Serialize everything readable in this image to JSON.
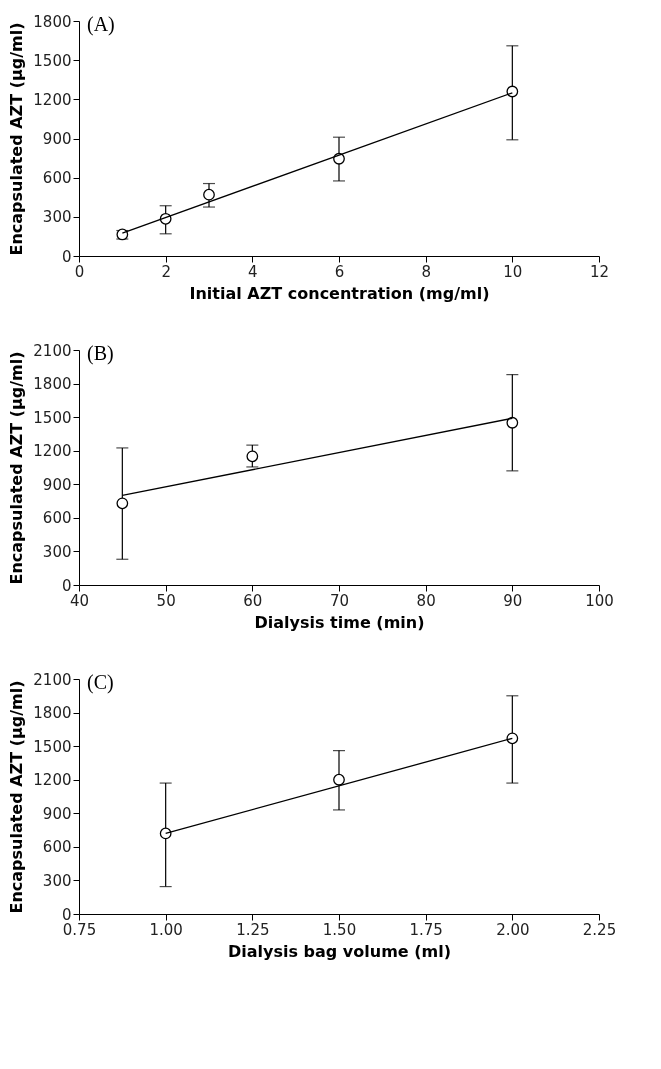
{
  "chart_data": [
    {
      "type": "scatter",
      "annotations": [
        "(A)"
      ],
      "xlabel": "Initial AZT concentration (mg/ml)",
      "ylabel": "Encapsulated AZT (µg/ml)",
      "xlim": [
        0,
        12
      ],
      "xticks": [
        0,
        2,
        4,
        6,
        8,
        10,
        12
      ],
      "ylim": [
        0,
        1800
      ],
      "yticks": [
        0,
        300,
        600,
        900,
        1200,
        1500,
        1800
      ],
      "grid": false,
      "series": [
        {
          "color": "#000000",
          "marker": "circle",
          "x": [
            1,
            2,
            3,
            6,
            10
          ],
          "values": [
            165,
            285,
            470,
            745,
            1260
          ],
          "errors": [
            [
              130,
              195
            ],
            [
              170,
              385
            ],
            [
              375,
              555
            ],
            [
              575,
              910
            ],
            [
              890,
              1610
            ]
          ]
        },
        {
          "type": "line",
          "color": "#000000",
          "line_style": "solid",
          "x": [
            1,
            10
          ],
          "values": [
            175,
            1250
          ]
        }
      ]
    },
    {
      "type": "scatter",
      "annotations": [
        "(B)"
      ],
      "xlabel": "Dialysis time (min)",
      "ylabel": "Encapsulated AZT (µg/ml)",
      "xlim": [
        40,
        100
      ],
      "xticks": [
        40,
        50,
        60,
        70,
        80,
        90,
        100
      ],
      "ylim": [
        0,
        2100
      ],
      "yticks": [
        0,
        300,
        600,
        900,
        1200,
        1500,
        1800,
        2100
      ],
      "grid": false,
      "series": [
        {
          "color": "#000000",
          "marker": "circle",
          "x": [
            45,
            60,
            90
          ],
          "values": [
            730,
            1150,
            1450
          ],
          "errors": [
            [
              230,
              1225
            ],
            [
              1055,
              1250
            ],
            [
              1020,
              1880
            ]
          ]
        },
        {
          "type": "line",
          "color": "#000000",
          "line_style": "solid",
          "x": [
            45,
            90
          ],
          "values": [
            800,
            1490
          ]
        }
      ]
    },
    {
      "type": "scatter",
      "annotations": [
        "(C)"
      ],
      "xlabel": "Dialysis bag volume (ml)",
      "ylabel": "Encapsulated AZT (µg/ml)",
      "xlim": [
        0.75,
        2.25
      ],
      "xticks": [
        0.75,
        {
          "value": 1,
          "label": "1.00"
        },
        1.25,
        {
          "value": 1.5,
          "label": "1.50"
        },
        1.75,
        {
          "value": 2,
          "label": "2.00"
        },
        2.25
      ],
      "ylim": [
        0,
        2100
      ],
      "yticks": [
        0,
        300,
        600,
        900,
        1200,
        1500,
        1800,
        2100
      ],
      "grid": false,
      "series": [
        {
          "color": "#000000",
          "marker": "circle",
          "x": [
            1,
            1.5,
            2
          ],
          "values": [
            720,
            1200,
            1570
          ],
          "errors": [
            [
              245,
              1170
            ],
            [
              930,
              1460
            ],
            [
              1170,
              1950
            ]
          ]
        },
        {
          "type": "line",
          "color": "#000000",
          "line_style": "solid",
          "x": [
            1,
            2
          ],
          "values": [
            720,
            1570
          ]
        }
      ]
    }
  ]
}
